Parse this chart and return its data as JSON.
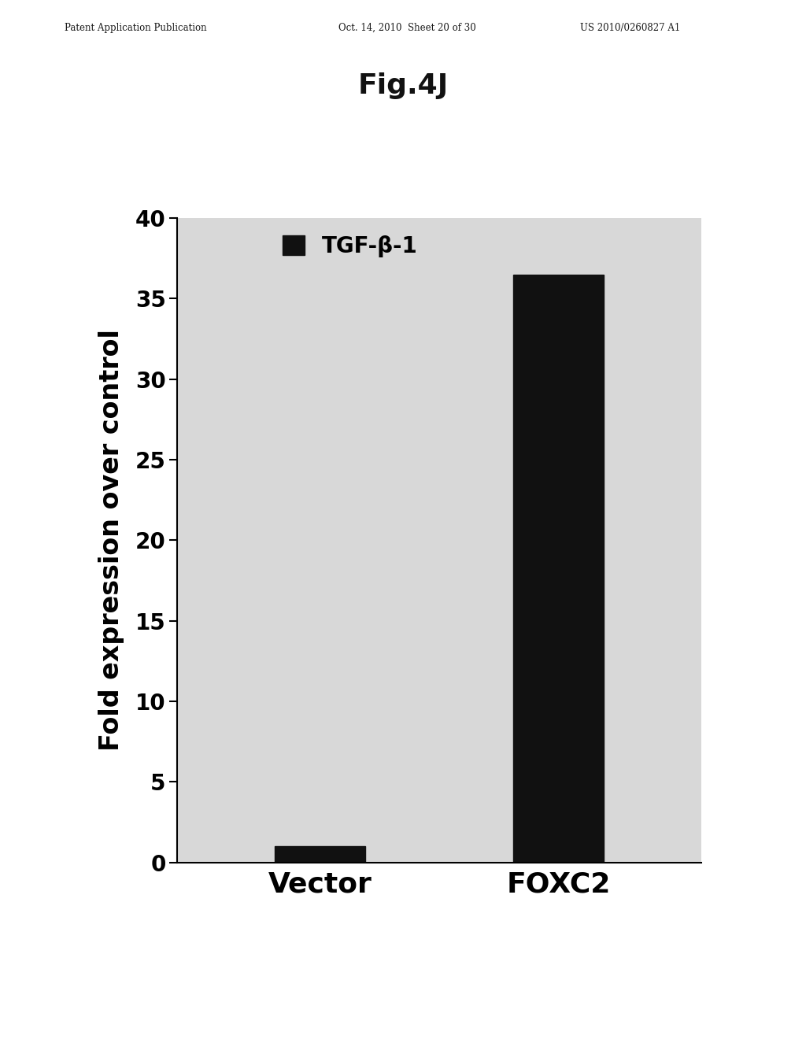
{
  "title": "Fig.4J",
  "patent_header_left": "Patent Application Publication",
  "patent_header_mid": "Oct. 14, 2010  Sheet 20 of 30",
  "patent_header_right": "US 2010/0260827 A1",
  "categories": [
    "Vector",
    "FOXC2"
  ],
  "values": [
    1.0,
    36.5
  ],
  "bar_color": "#111111",
  "ylabel": "Fold expression over control",
  "ylim": [
    0,
    40
  ],
  "yticks": [
    0,
    5,
    10,
    15,
    20,
    25,
    30,
    35,
    40
  ],
  "legend_label": "TGF-β-1",
  "title_fontsize": 26,
  "ylabel_fontsize": 24,
  "xtick_fontsize": 26,
  "ytick_fontsize": 20,
  "legend_fontsize": 20,
  "background_color": "#d8d8d8",
  "fig_background": "#ffffff"
}
